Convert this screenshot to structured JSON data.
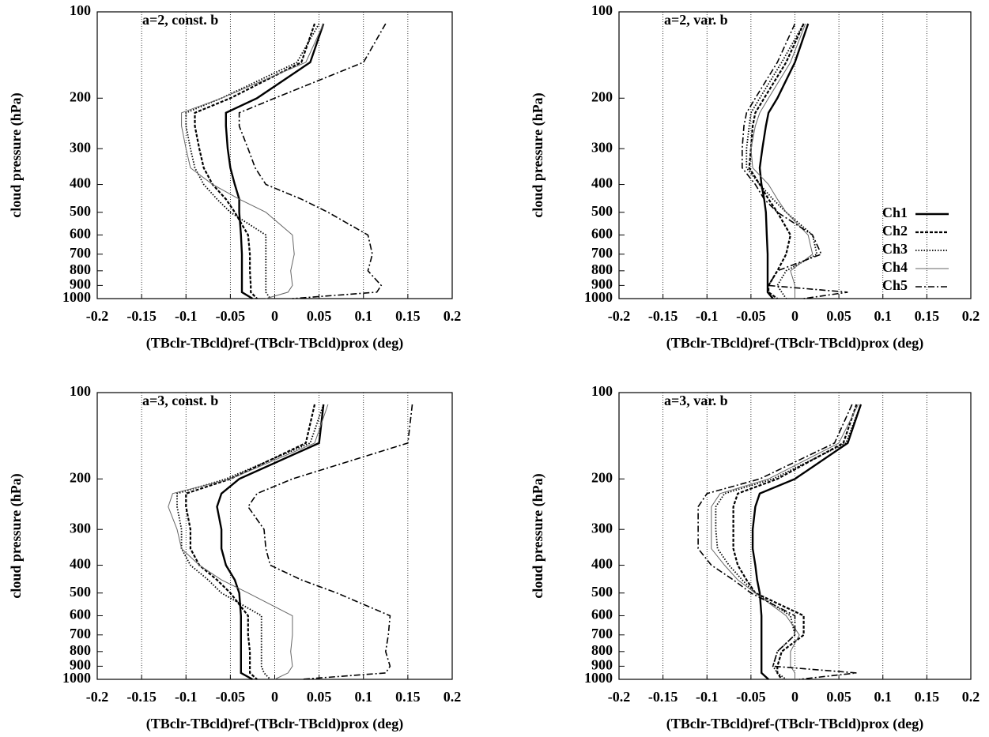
{
  "chart_data": [
    {
      "type": "line",
      "annotation": "a=2, const. b",
      "xlabel": "(TBclr-TBcld)ref-(TBclr-TBcld)prox (deg)",
      "ylabel": "cloud pressure (hPa)",
      "xlim": [
        -0.2,
        0.2
      ],
      "xticks": [
        -0.2,
        -0.15,
        -0.1,
        -0.05,
        0,
        0.05,
        0.1,
        0.15,
        0.2
      ],
      "ylim": [
        100,
        1000
      ],
      "yticks": [
        100,
        200,
        300,
        400,
        500,
        600,
        700,
        800,
        900,
        1000
      ],
      "ylog": true,
      "y_inverted": true,
      "grid": true,
      "y": [
        110,
        150,
        200,
        225,
        250,
        300,
        350,
        400,
        450,
        500,
        600,
        700,
        800,
        900,
        950,
        1000
      ],
      "series": [
        {
          "color": "#000000",
          "style": "solid",
          "values": [
            0.055,
            0.04,
            -0.02,
            -0.055,
            -0.055,
            -0.053,
            -0.05,
            -0.045,
            -0.04,
            -0.04,
            -0.038,
            -0.037,
            -0.037,
            -0.037,
            -0.037,
            -0.025
          ]
        },
        {
          "color": "#000000",
          "style": "dashed",
          "values": [
            0.045,
            0.03,
            -0.05,
            -0.09,
            -0.09,
            -0.085,
            -0.08,
            -0.07,
            -0.055,
            -0.045,
            -0.03,
            -0.028,
            -0.028,
            -0.027,
            -0.027,
            -0.02
          ]
        },
        {
          "color": "#000000",
          "style": "dotted",
          "values": [
            0.05,
            0.025,
            -0.06,
            -0.1,
            -0.1,
            -0.095,
            -0.09,
            -0.08,
            -0.065,
            -0.05,
            -0.01,
            -0.01,
            -0.01,
            -0.01,
            -0.01,
            -0.005
          ]
        },
        {
          "color": "#666666",
          "style": "thin",
          "values": [
            0.055,
            0.035,
            -0.06,
            -0.105,
            -0.105,
            -0.1,
            -0.095,
            -0.07,
            -0.04,
            -0.01,
            0.02,
            0.022,
            0.018,
            0.02,
            0.015,
            -0.01
          ]
        },
        {
          "color": "#000000",
          "style": "dashdot",
          "values": [
            0.125,
            0.1,
            0.0,
            -0.04,
            -0.04,
            -0.03,
            -0.022,
            -0.01,
            0.03,
            0.06,
            0.105,
            0.11,
            0.105,
            0.12,
            0.115,
            0.02
          ]
        }
      ]
    },
    {
      "type": "line",
      "annotation": "a=2, var. b",
      "xlabel": "(TBclr-TBcld)ref-(TBclr-TBcld)prox (deg)",
      "ylabel": "cloud pressure (hPa)",
      "xlim": [
        -0.2,
        0.2
      ],
      "xticks": [
        -0.2,
        -0.15,
        -0.1,
        -0.05,
        0,
        0.05,
        0.1,
        0.15,
        0.2
      ],
      "ylim": [
        100,
        1000
      ],
      "yticks": [
        100,
        200,
        300,
        400,
        500,
        600,
        700,
        800,
        900,
        1000
      ],
      "ylog": true,
      "y_inverted": true,
      "grid": true,
      "legend": "right",
      "y": [
        110,
        150,
        200,
        225,
        250,
        300,
        350,
        400,
        450,
        500,
        600,
        700,
        800,
        900,
        950,
        1000
      ],
      "series": [
        {
          "name": "Ch1",
          "color": "#000000",
          "style": "solid",
          "values": [
            0.015,
            0.0,
            -0.02,
            -0.03,
            -0.033,
            -0.037,
            -0.04,
            -0.038,
            -0.035,
            -0.033,
            -0.032,
            -0.031,
            -0.031,
            -0.031,
            -0.031,
            -0.025
          ]
        },
        {
          "name": "Ch2",
          "color": "#000000",
          "style": "dashed",
          "values": [
            0.01,
            -0.01,
            -0.035,
            -0.045,
            -0.048,
            -0.05,
            -0.052,
            -0.04,
            -0.03,
            -0.02,
            -0.005,
            -0.01,
            -0.02,
            -0.03,
            -0.03,
            -0.02
          ]
        },
        {
          "name": "Ch3",
          "color": "#000000",
          "style": "dotted",
          "values": [
            0.01,
            -0.015,
            -0.04,
            -0.05,
            -0.052,
            -0.055,
            -0.055,
            -0.04,
            -0.025,
            -0.01,
            0.02,
            0.025,
            -0.01,
            -0.02,
            -0.015,
            -0.01
          ]
        },
        {
          "name": "Ch4",
          "color": "#666666",
          "style": "thin",
          "values": [
            0.012,
            -0.005,
            -0.03,
            -0.04,
            -0.045,
            -0.05,
            -0.048,
            -0.03,
            -0.02,
            -0.01,
            0.015,
            0.02,
            -0.005,
            0.0,
            0.0,
            0.0
          ]
        },
        {
          "name": "Ch5",
          "color": "#000000",
          "style": "dashdot",
          "values": [
            0.0,
            -0.02,
            -0.045,
            -0.055,
            -0.058,
            -0.06,
            -0.06,
            -0.045,
            -0.035,
            -0.02,
            0.02,
            0.03,
            -0.02,
            -0.03,
            0.06,
            0.01
          ]
        }
      ]
    },
    {
      "type": "line",
      "annotation": "a=3, const. b",
      "xlabel": "(TBclr-TBcld)ref-(TBclr-TBcld)prox (deg)",
      "ylabel": "cloud pressure (hPa)",
      "xlim": [
        -0.2,
        0.2
      ],
      "xticks": [
        -0.2,
        -0.15,
        -0.1,
        -0.05,
        0,
        0.05,
        0.1,
        0.15,
        0.2
      ],
      "ylim": [
        100,
        1000
      ],
      "yticks": [
        100,
        200,
        300,
        400,
        500,
        600,
        700,
        800,
        900,
        1000
      ],
      "ylog": true,
      "y_inverted": true,
      "grid": true,
      "y": [
        110,
        150,
        200,
        225,
        250,
        300,
        350,
        400,
        450,
        500,
        600,
        700,
        800,
        900,
        950,
        1000
      ],
      "series": [
        {
          "color": "#000000",
          "style": "solid",
          "values": [
            0.055,
            0.05,
            -0.04,
            -0.06,
            -0.065,
            -0.06,
            -0.06,
            -0.055,
            -0.045,
            -0.04,
            -0.038,
            -0.038,
            -0.038,
            -0.038,
            -0.038,
            -0.025
          ]
        },
        {
          "color": "#000000",
          "style": "dashed",
          "values": [
            0.045,
            0.035,
            -0.05,
            -0.1,
            -0.1,
            -0.095,
            -0.095,
            -0.085,
            -0.065,
            -0.05,
            -0.03,
            -0.03,
            -0.028,
            -0.028,
            -0.028,
            -0.02
          ]
        },
        {
          "color": "#000000",
          "style": "dotted",
          "values": [
            0.055,
            0.04,
            -0.055,
            -0.11,
            -0.11,
            -0.105,
            -0.105,
            -0.095,
            -0.075,
            -0.06,
            -0.015,
            -0.015,
            -0.015,
            -0.015,
            -0.012,
            -0.005
          ]
        },
        {
          "color": "#666666",
          "style": "thin",
          "values": [
            0.06,
            0.045,
            -0.05,
            -0.115,
            -0.12,
            -0.11,
            -0.105,
            -0.085,
            -0.06,
            -0.03,
            0.02,
            0.02,
            0.018,
            0.02,
            0.015,
            0.0
          ]
        },
        {
          "color": "#000000",
          "style": "dashdot",
          "values": [
            0.155,
            0.15,
            0.02,
            -0.02,
            -0.03,
            -0.012,
            -0.01,
            -0.005,
            0.03,
            0.07,
            0.13,
            0.128,
            0.125,
            0.13,
            0.125,
            0.03
          ]
        }
      ]
    },
    {
      "type": "line",
      "annotation": "a=3, var. b",
      "xlabel": "(TBclr-TBcld)ref-(TBclr-TBcld)prox (deg)",
      "ylabel": "cloud pressure (hPa)",
      "xlim": [
        -0.2,
        0.2
      ],
      "xticks": [
        -0.2,
        -0.15,
        -0.1,
        -0.05,
        0,
        0.05,
        0.1,
        0.15,
        0.2
      ],
      "ylim": [
        100,
        1000
      ],
      "yticks": [
        100,
        200,
        300,
        400,
        500,
        600,
        700,
        800,
        900,
        1000
      ],
      "ylog": true,
      "y_inverted": true,
      "grid": true,
      "y": [
        110,
        150,
        200,
        225,
        250,
        300,
        350,
        400,
        450,
        500,
        600,
        700,
        800,
        900,
        950,
        1000
      ],
      "series": [
        {
          "color": "#000000",
          "style": "solid",
          "values": [
            0.075,
            0.06,
            0.0,
            -0.04,
            -0.045,
            -0.048,
            -0.048,
            -0.045,
            -0.043,
            -0.04,
            -0.038,
            -0.038,
            -0.038,
            -0.038,
            -0.038,
            -0.03
          ]
        },
        {
          "color": "#000000",
          "style": "dashed",
          "values": [
            0.07,
            0.055,
            -0.02,
            -0.065,
            -0.07,
            -0.07,
            -0.07,
            -0.065,
            -0.055,
            -0.045,
            0.01,
            0.01,
            -0.015,
            -0.02,
            -0.02,
            -0.015
          ]
        },
        {
          "color": "#000000",
          "style": "dotted",
          "values": [
            0.075,
            0.058,
            -0.025,
            -0.08,
            -0.09,
            -0.09,
            -0.088,
            -0.075,
            -0.06,
            -0.045,
            -0.005,
            0.0,
            -0.02,
            -0.025,
            -0.02,
            -0.01
          ]
        },
        {
          "color": "#666666",
          "style": "thin",
          "values": [
            0.072,
            0.05,
            -0.03,
            -0.085,
            -0.095,
            -0.095,
            -0.095,
            -0.08,
            -0.065,
            -0.045,
            -0.01,
            0.005,
            -0.005,
            -0.005,
            0.0,
            0.0
          ]
        },
        {
          "color": "#000000",
          "style": "dashdot",
          "values": [
            0.065,
            0.045,
            -0.04,
            -0.1,
            -0.11,
            -0.11,
            -0.11,
            -0.095,
            -0.07,
            -0.05,
            0.0,
            0.0,
            -0.02,
            -0.025,
            0.07,
            0.005
          ]
        }
      ]
    }
  ]
}
